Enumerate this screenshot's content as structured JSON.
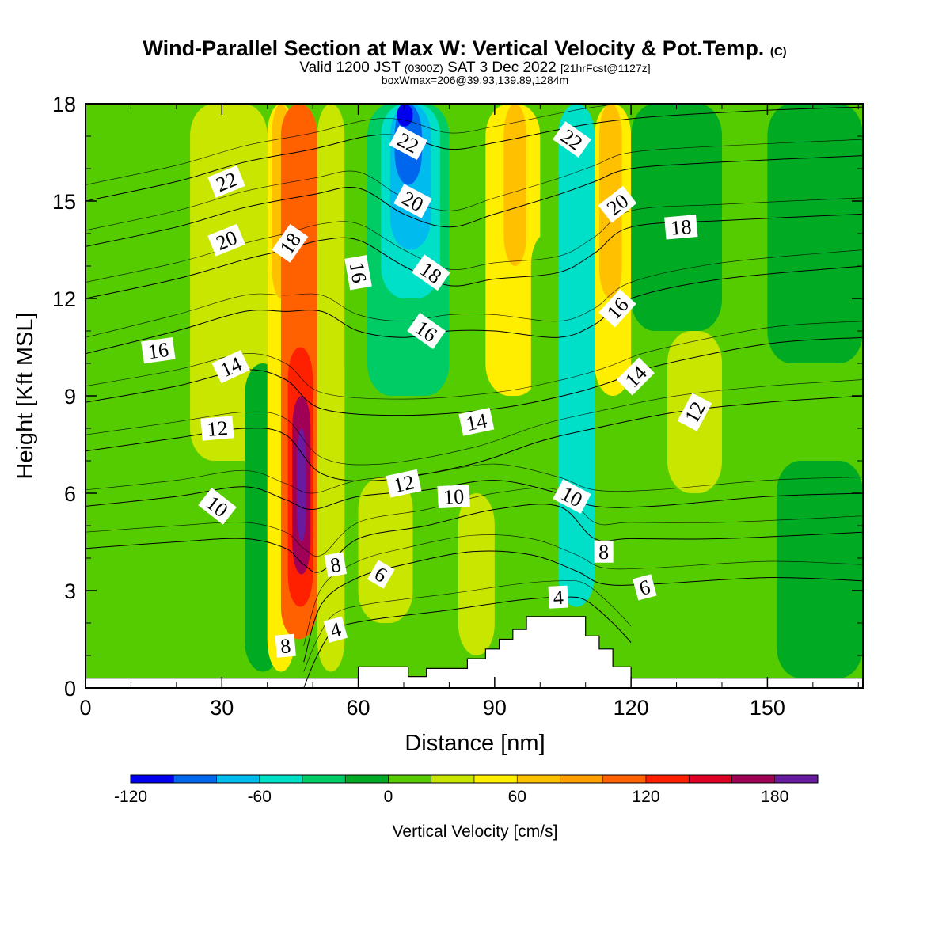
{
  "header": {
    "title": "Wind-Parallel Section at Max W: Vertical Velocity & Pot.Temp.",
    "title_mark": "(C)",
    "valid_prefix": "Valid 1200 JST",
    "valid_utc": "(0300Z)",
    "valid_date": "SAT 3 Dec 2022",
    "valid_fcst": "[21hrFcst@1127z]",
    "boxinfo": "boxWmax=206@39.93,139.89,1284m"
  },
  "chart_data": {
    "type": "heatmap",
    "xlabel": "Distance [nm]",
    "ylabel": "Height [Kft MSL]",
    "xlim": [
      0,
      171
    ],
    "ylim": [
      0,
      18
    ],
    "x_ticks": [
      "0",
      "30",
      "60",
      "90",
      "120",
      "150"
    ],
    "x_tick_values": [
      0,
      30,
      60,
      90,
      120,
      150
    ],
    "y_ticks": [
      "0",
      "3",
      "6",
      "9",
      "12",
      "15",
      "18"
    ],
    "y_tick_values": [
      0,
      3,
      6,
      9,
      12,
      15,
      18
    ],
    "colorbar": {
      "title": "Vertical Velocity [cm/s]",
      "labels": [
        "-120",
        "-60",
        "0",
        "60",
        "120",
        "180"
      ],
      "label_values": [
        -120,
        -60,
        0,
        60,
        120,
        180
      ],
      "levels": [
        -120,
        -100,
        -80,
        -60,
        -40,
        -20,
        0,
        20,
        40,
        60,
        80,
        100,
        120,
        140,
        160,
        180,
        200
      ],
      "colors": [
        "#0000ee",
        "#0066ee",
        "#00bbee",
        "#00e0c8",
        "#00cc66",
        "#00aa22",
        "#55cc00",
        "#c8e600",
        "#ffee00",
        "#ffc000",
        "#ffa000",
        "#ff6000",
        "#ff2000",
        "#dd0022",
        "#a00055",
        "#6a1aa0"
      ]
    },
    "vertical_velocity_bands": [
      {
        "x0": 0,
        "x1": 30,
        "y0": 0,
        "y1": 18,
        "value": 10
      },
      {
        "x0": 23,
        "x1": 40,
        "y0": 7,
        "y1": 18,
        "value": 30
      },
      {
        "x0": 35,
        "x1": 43,
        "y0": 0.5,
        "y1": 10,
        "value": -5
      },
      {
        "x0": 40,
        "x1": 46,
        "y0": 0.5,
        "y1": 18,
        "value": 50
      },
      {
        "x0": 41,
        "x1": 45,
        "y0": 12,
        "y1": 18,
        "value": 75
      },
      {
        "x0": 43,
        "x1": 51,
        "y0": 1.5,
        "y1": 18,
        "value": 100
      },
      {
        "x0": 44.5,
        "x1": 50,
        "y0": 2.5,
        "y1": 10.5,
        "value": 130
      },
      {
        "x0": 45.5,
        "x1": 49.5,
        "y0": 3.5,
        "y1": 9,
        "value": 160
      },
      {
        "x0": 46.5,
        "x1": 48.5,
        "y0": 4.5,
        "y1": 8,
        "value": 190
      },
      {
        "x0": 51,
        "x1": 57,
        "y0": 0.5,
        "y1": 18,
        "value": 35
      },
      {
        "x0": 57,
        "x1": 62,
        "y0": 9,
        "y1": 18,
        "value": 0
      },
      {
        "x0": 62,
        "x1": 80,
        "y0": 9,
        "y1": 18,
        "value": -30
      },
      {
        "x0": 65,
        "x1": 78,
        "y0": 12,
        "y1": 18,
        "value": -50
      },
      {
        "x0": 67,
        "x1": 76,
        "y0": 13.5,
        "y1": 18,
        "value": -75
      },
      {
        "x0": 68,
        "x1": 74,
        "y0": 15.5,
        "y1": 18,
        "value": -95
      },
      {
        "x0": 68.5,
        "x1": 72,
        "y0": 17.3,
        "y1": 18,
        "value": -115
      },
      {
        "x0": 60,
        "x1": 72,
        "y0": 2,
        "y1": 6.5,
        "value": 30
      },
      {
        "x0": 80,
        "x1": 88,
        "y0": 8,
        "y1": 18,
        "value": 5
      },
      {
        "x0": 82,
        "x1": 90,
        "y0": 1,
        "y1": 6,
        "value": 30
      },
      {
        "x0": 88,
        "x1": 100,
        "y0": 9,
        "y1": 18,
        "value": 50
      },
      {
        "x0": 92,
        "x1": 97,
        "y0": 13,
        "y1": 18,
        "value": 70
      },
      {
        "x0": 98,
        "x1": 105,
        "y0": 2.5,
        "y1": 14,
        "value": 0
      },
      {
        "x0": 104,
        "x1": 112,
        "y0": 2.5,
        "y1": 18,
        "value": -45
      },
      {
        "x0": 105.5,
        "x1": 109.5,
        "y0": 5,
        "y1": 18,
        "value": -60
      },
      {
        "x0": 112,
        "x1": 120,
        "y0": 9,
        "y1": 18,
        "value": 55
      },
      {
        "x0": 113,
        "x1": 118,
        "y0": 12,
        "y1": 18,
        "value": 75
      },
      {
        "x0": 120,
        "x1": 140,
        "y0": 11,
        "y1": 18,
        "value": -5
      },
      {
        "x0": 128,
        "x1": 140,
        "y0": 6,
        "y1": 11,
        "value": 35
      },
      {
        "x0": 150,
        "x1": 171,
        "y0": 10,
        "y1": 18,
        "value": -5
      },
      {
        "x0": 152,
        "x1": 171,
        "y0": 0.3,
        "y1": 7,
        "value": -5
      }
    ],
    "terrain": [
      [
        0,
        0.3
      ],
      [
        60,
        0.3
      ],
      [
        60,
        0.65
      ],
      [
        71,
        0.65
      ],
      [
        71,
        0.35
      ],
      [
        75,
        0.35
      ],
      [
        75,
        0.6
      ],
      [
        84,
        0.6
      ],
      [
        84,
        0.9
      ],
      [
        88,
        0.9
      ],
      [
        88,
        1.2
      ],
      [
        91,
        1.2
      ],
      [
        91,
        1.5
      ],
      [
        94,
        1.5
      ],
      [
        94,
        1.8
      ],
      [
        97,
        1.8
      ],
      [
        97,
        2.2
      ],
      [
        110,
        2.2
      ],
      [
        110,
        1.6
      ],
      [
        113,
        1.6
      ],
      [
        113,
        1.2
      ],
      [
        116,
        1.2
      ],
      [
        116,
        0.65
      ],
      [
        120,
        0.65
      ],
      [
        120,
        0.3
      ],
      [
        171,
        0.3
      ]
    ],
    "potential_temperature_contours": [
      {
        "value": 4,
        "points": [
          [
            48,
            0
          ],
          [
            51,
            1.0
          ],
          [
            55,
            1.8
          ],
          [
            63,
            2.1
          ],
          [
            80,
            2.4
          ],
          [
            95,
            2.7
          ],
          [
            105,
            2.8
          ],
          [
            110,
            2.7
          ],
          [
            116,
            2.0
          ],
          [
            120,
            1.4
          ]
        ]
      },
      {
        "value": 6,
        "points": [
          [
            48,
            0.8
          ],
          [
            52,
            2.6
          ],
          [
            60,
            3.4
          ],
          [
            70,
            3.8
          ],
          [
            85,
            4.2
          ],
          [
            98,
            4.1
          ],
          [
            108,
            3.6
          ],
          [
            114,
            3.2
          ],
          [
            125,
            3.2
          ],
          [
            150,
            3.4
          ],
          [
            171,
            3.3
          ]
        ]
      },
      {
        "value": 8,
        "points": [
          [
            0,
            4.3
          ],
          [
            20,
            4.5
          ],
          [
            35,
            4.6
          ],
          [
            44,
            4.3
          ],
          [
            48,
            3.8
          ],
          [
            52,
            3.6
          ],
          [
            60,
            4.6
          ],
          [
            75,
            5.0
          ],
          [
            90,
            5.5
          ],
          [
            104,
            5.6
          ],
          [
            112,
            4.6
          ],
          [
            120,
            4.6
          ],
          [
            140,
            4.6
          ],
          [
            171,
            4.8
          ]
        ]
      },
      {
        "value": 10,
        "points": [
          [
            0,
            5.6
          ],
          [
            20,
            5.9
          ],
          [
            35,
            6.2
          ],
          [
            44,
            5.8
          ],
          [
            50,
            5.5
          ],
          [
            60,
            5.9
          ],
          [
            75,
            6.1
          ],
          [
            90,
            6.4
          ],
          [
            104,
            6.0
          ],
          [
            112,
            5.6
          ],
          [
            125,
            5.6
          ],
          [
            150,
            5.9
          ],
          [
            171,
            6.0
          ]
        ]
      },
      {
        "value": 12,
        "points": [
          [
            0,
            7.3
          ],
          [
            20,
            7.7
          ],
          [
            35,
            8.0
          ],
          [
            44,
            7.8
          ],
          [
            52,
            6.6
          ],
          [
            65,
            6.4
          ],
          [
            85,
            6.9
          ],
          [
            100,
            7.6
          ],
          [
            112,
            8.0
          ],
          [
            130,
            8.5
          ],
          [
            150,
            8.8
          ],
          [
            171,
            9.0
          ]
        ]
      },
      {
        "value": 14,
        "points": [
          [
            0,
            8.8
          ],
          [
            20,
            9.3
          ],
          [
            35,
            9.8
          ],
          [
            44,
            9.5
          ],
          [
            52,
            8.6
          ],
          [
            70,
            8.4
          ],
          [
            90,
            8.6
          ],
          [
            105,
            9.0
          ],
          [
            115,
            9.4
          ],
          [
            125,
            9.9
          ],
          [
            150,
            10.6
          ],
          [
            171,
            10.8
          ]
        ]
      },
      {
        "value": 16,
        "points": [
          [
            0,
            10.3
          ],
          [
            20,
            11.0
          ],
          [
            35,
            11.6
          ],
          [
            44,
            11.6
          ],
          [
            52,
            11.6
          ],
          [
            60,
            11.0
          ],
          [
            70,
            10.8
          ],
          [
            80,
            11.0
          ],
          [
            90,
            11.0
          ],
          [
            104,
            10.8
          ],
          [
            112,
            11.2
          ],
          [
            120,
            12.0
          ],
          [
            140,
            12.6
          ],
          [
            171,
            13.0
          ]
        ]
      },
      {
        "value": 18,
        "points": [
          [
            0,
            12.0
          ],
          [
            20,
            12.6
          ],
          [
            35,
            13.2
          ],
          [
            44,
            13.5
          ],
          [
            52,
            13.8
          ],
          [
            60,
            13.8
          ],
          [
            70,
            13.0
          ],
          [
            80,
            12.4
          ],
          [
            90,
            12.6
          ],
          [
            104,
            12.8
          ],
          [
            112,
            13.4
          ],
          [
            120,
            14.2
          ],
          [
            140,
            14.4
          ],
          [
            171,
            14.6
          ]
        ]
      },
      {
        "value": 20,
        "points": [
          [
            0,
            13.6
          ],
          [
            20,
            14.2
          ],
          [
            35,
            14.8
          ],
          [
            50,
            15.2
          ],
          [
            60,
            15.4
          ],
          [
            70,
            14.6
          ],
          [
            80,
            14.2
          ],
          [
            90,
            14.6
          ],
          [
            104,
            15.2
          ],
          [
            112,
            15.6
          ],
          [
            120,
            16.0
          ],
          [
            140,
            16.2
          ],
          [
            171,
            16.4
          ]
        ]
      },
      {
        "value": 22,
        "points": [
          [
            0,
            15.0
          ],
          [
            20,
            15.6
          ],
          [
            35,
            16.2
          ],
          [
            50,
            16.6
          ],
          [
            62,
            17.0
          ],
          [
            70,
            17.0
          ],
          [
            80,
            16.6
          ],
          [
            90,
            16.8
          ],
          [
            104,
            17.2
          ],
          [
            112,
            17.4
          ],
          [
            125,
            17.6
          ],
          [
            150,
            17.8
          ],
          [
            171,
            17.9
          ]
        ]
      }
    ],
    "contour_labels": [
      {
        "text": "22",
        "x": 31,
        "y": 15.6,
        "angle": -22
      },
      {
        "text": "20",
        "x": 31,
        "y": 13.8,
        "angle": -22
      },
      {
        "text": "18",
        "x": 45,
        "y": 13.7,
        "angle": -55
      },
      {
        "text": "16",
        "x": 16,
        "y": 10.4,
        "angle": -8
      },
      {
        "text": "14",
        "x": 32,
        "y": 9.9,
        "angle": -25
      },
      {
        "text": "12",
        "x": 29,
        "y": 8.0,
        "angle": -5
      },
      {
        "text": "10",
        "x": 29,
        "y": 5.6,
        "angle": 38
      },
      {
        "text": "8",
        "x": 55,
        "y": 3.8,
        "angle": -10
      },
      {
        "text": "6",
        "x": 65,
        "y": 3.5,
        "angle": 30
      },
      {
        "text": "4",
        "x": 55,
        "y": 1.8,
        "angle": -15
      },
      {
        "text": "8",
        "x": 44,
        "y": 1.3,
        "angle": -5
      },
      {
        "text": "16",
        "x": 60,
        "y": 12.8,
        "angle": 80
      },
      {
        "text": "22",
        "x": 71,
        "y": 16.8,
        "angle": 28
      },
      {
        "text": "20",
        "x": 72,
        "y": 15.0,
        "angle": 28
      },
      {
        "text": "18",
        "x": 76,
        "y": 12.8,
        "angle": 35
      },
      {
        "text": "16",
        "x": 75,
        "y": 11.0,
        "angle": 35
      },
      {
        "text": "14",
        "x": 86,
        "y": 8.2,
        "angle": -12
      },
      {
        "text": "12",
        "x": 70,
        "y": 6.3,
        "angle": -12
      },
      {
        "text": "10",
        "x": 81,
        "y": 5.9,
        "angle": -3
      },
      {
        "text": "4",
        "x": 104,
        "y": 2.8,
        "angle": -3
      },
      {
        "text": "22",
        "x": 107,
        "y": 16.9,
        "angle": 35
      },
      {
        "text": "20",
        "x": 117,
        "y": 14.9,
        "angle": -38
      },
      {
        "text": "18",
        "x": 131,
        "y": 14.2,
        "angle": -5
      },
      {
        "text": "16",
        "x": 117,
        "y": 11.7,
        "angle": -48
      },
      {
        "text": "14",
        "x": 121,
        "y": 9.6,
        "angle": -45
      },
      {
        "text": "12",
        "x": 134,
        "y": 8.5,
        "angle": -62
      },
      {
        "text": "10",
        "x": 107,
        "y": 5.9,
        "angle": 28
      },
      {
        "text": "8",
        "x": 114,
        "y": 4.2,
        "angle": 0
      },
      {
        "text": "6",
        "x": 123,
        "y": 3.1,
        "angle": -15
      }
    ]
  }
}
